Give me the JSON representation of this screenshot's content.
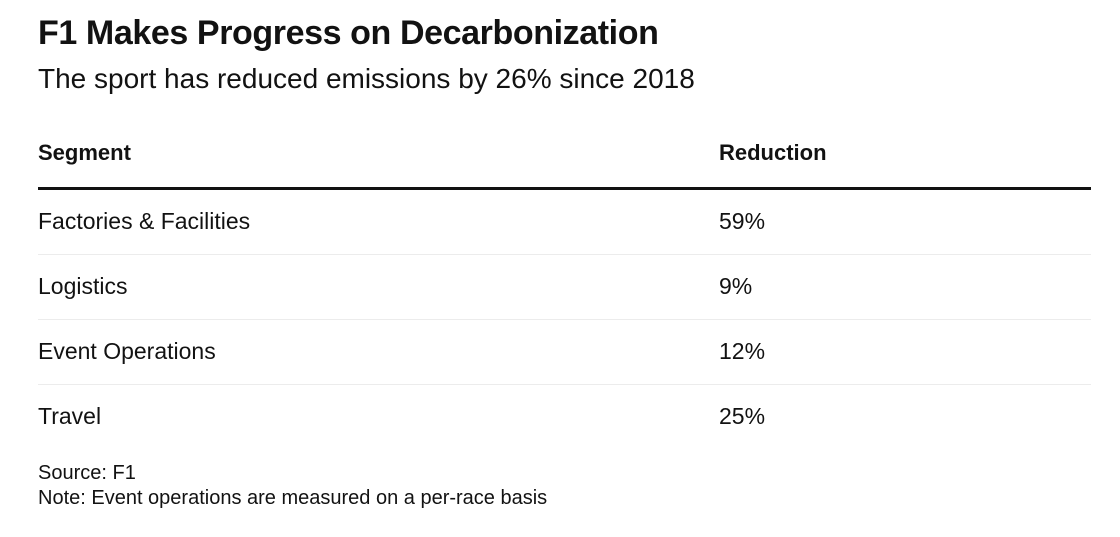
{
  "chart_data": {
    "type": "table",
    "title": "F1 Makes Progress on Decarbonization",
    "subtitle": "The sport has reduced emissions by 26% since 2018",
    "columns": [
      "Segment",
      "Reduction"
    ],
    "rows": [
      {
        "segment": "Factories & Facilities",
        "reduction": "59%"
      },
      {
        "segment": "Logistics",
        "reduction": "9%"
      },
      {
        "segment": "Event Operations",
        "reduction": "12%"
      },
      {
        "segment": "Travel",
        "reduction": "25%"
      }
    ],
    "source": "Source: F1",
    "note": "Note: Event operations are measured on a per-race basis"
  }
}
